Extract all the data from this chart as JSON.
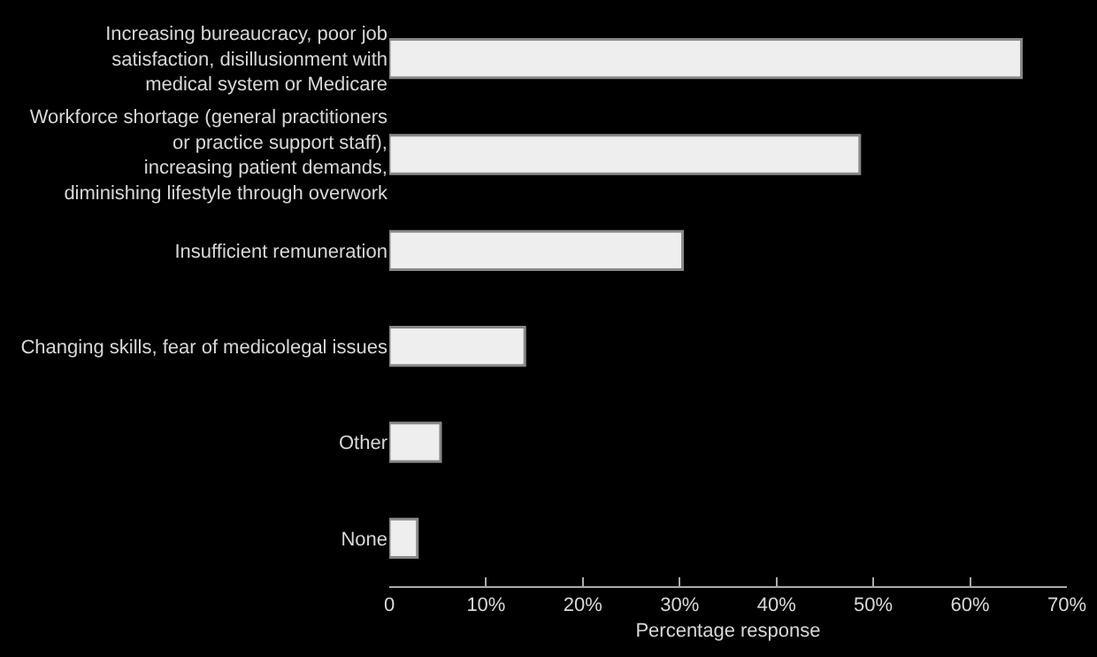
{
  "chart_data": {
    "type": "bar",
    "orientation": "horizontal",
    "xlabel": "Percentage response",
    "categories": [
      "Increasing bureaucracy, poor job\nsatisfaction, disillusionment with\nmedical system or Medicare",
      "Workforce shortage (general practitioners\nor practice support staff),\nincreasing patient demands,\ndiminishing lifestyle through overwork",
      "Insufficient remuneration",
      "Changing skills, fear of medicolegal issues",
      "Other",
      "None"
    ],
    "values": [
      65.3,
      48.6,
      30.3,
      14.0,
      5.3,
      2.9
    ],
    "color": "#eeeeee",
    "xlim": [
      0,
      70
    ],
    "xticks": [
      {
        "value": 0,
        "label": "0"
      },
      {
        "value": 10,
        "label": "10%"
      },
      {
        "value": 20,
        "label": "20%"
      },
      {
        "value": 30,
        "label": "30%"
      },
      {
        "value": 40,
        "label": "40%"
      },
      {
        "value": 50,
        "label": "50%"
      },
      {
        "value": 60,
        "label": "60%"
      },
      {
        "value": 70,
        "label": "70%"
      }
    ],
    "grid": false,
    "legend": false
  }
}
